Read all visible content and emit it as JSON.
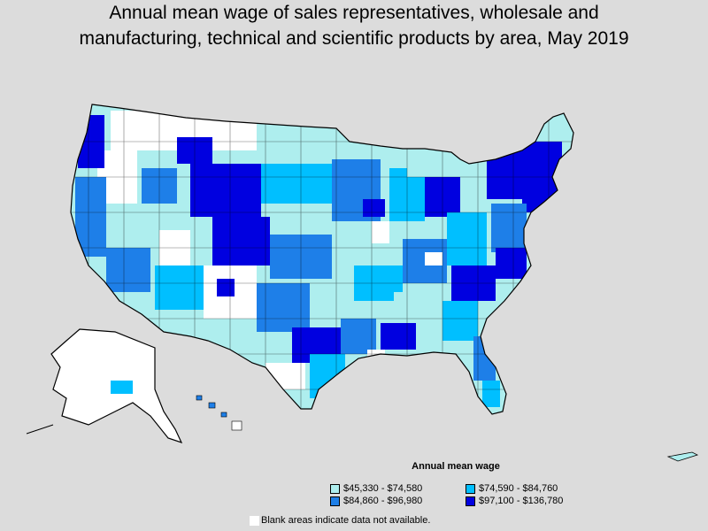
{
  "title_line1": "Annual mean wage of sales representatives, wholesale and",
  "title_line2": "manufacturing, technical and scientific products by area, May 2019",
  "legend": {
    "title": "Annual mean wage",
    "items": [
      {
        "label": "$45,330 - $74,580",
        "color": "#aeeeee"
      },
      {
        "label": "$74,590 - $84,760",
        "color": "#00bfff"
      },
      {
        "label": "$84,860 - $96,980",
        "color": "#1e7fe8"
      },
      {
        "label": "$97,100 - $136,780",
        "color": "#0000e0"
      }
    ]
  },
  "note": {
    "text": "Blank areas indicate data not available.",
    "color": "#ffffff"
  },
  "colors": {
    "background": "#dcdcdc",
    "no_data": "#ffffff",
    "border": "#000000"
  }
}
